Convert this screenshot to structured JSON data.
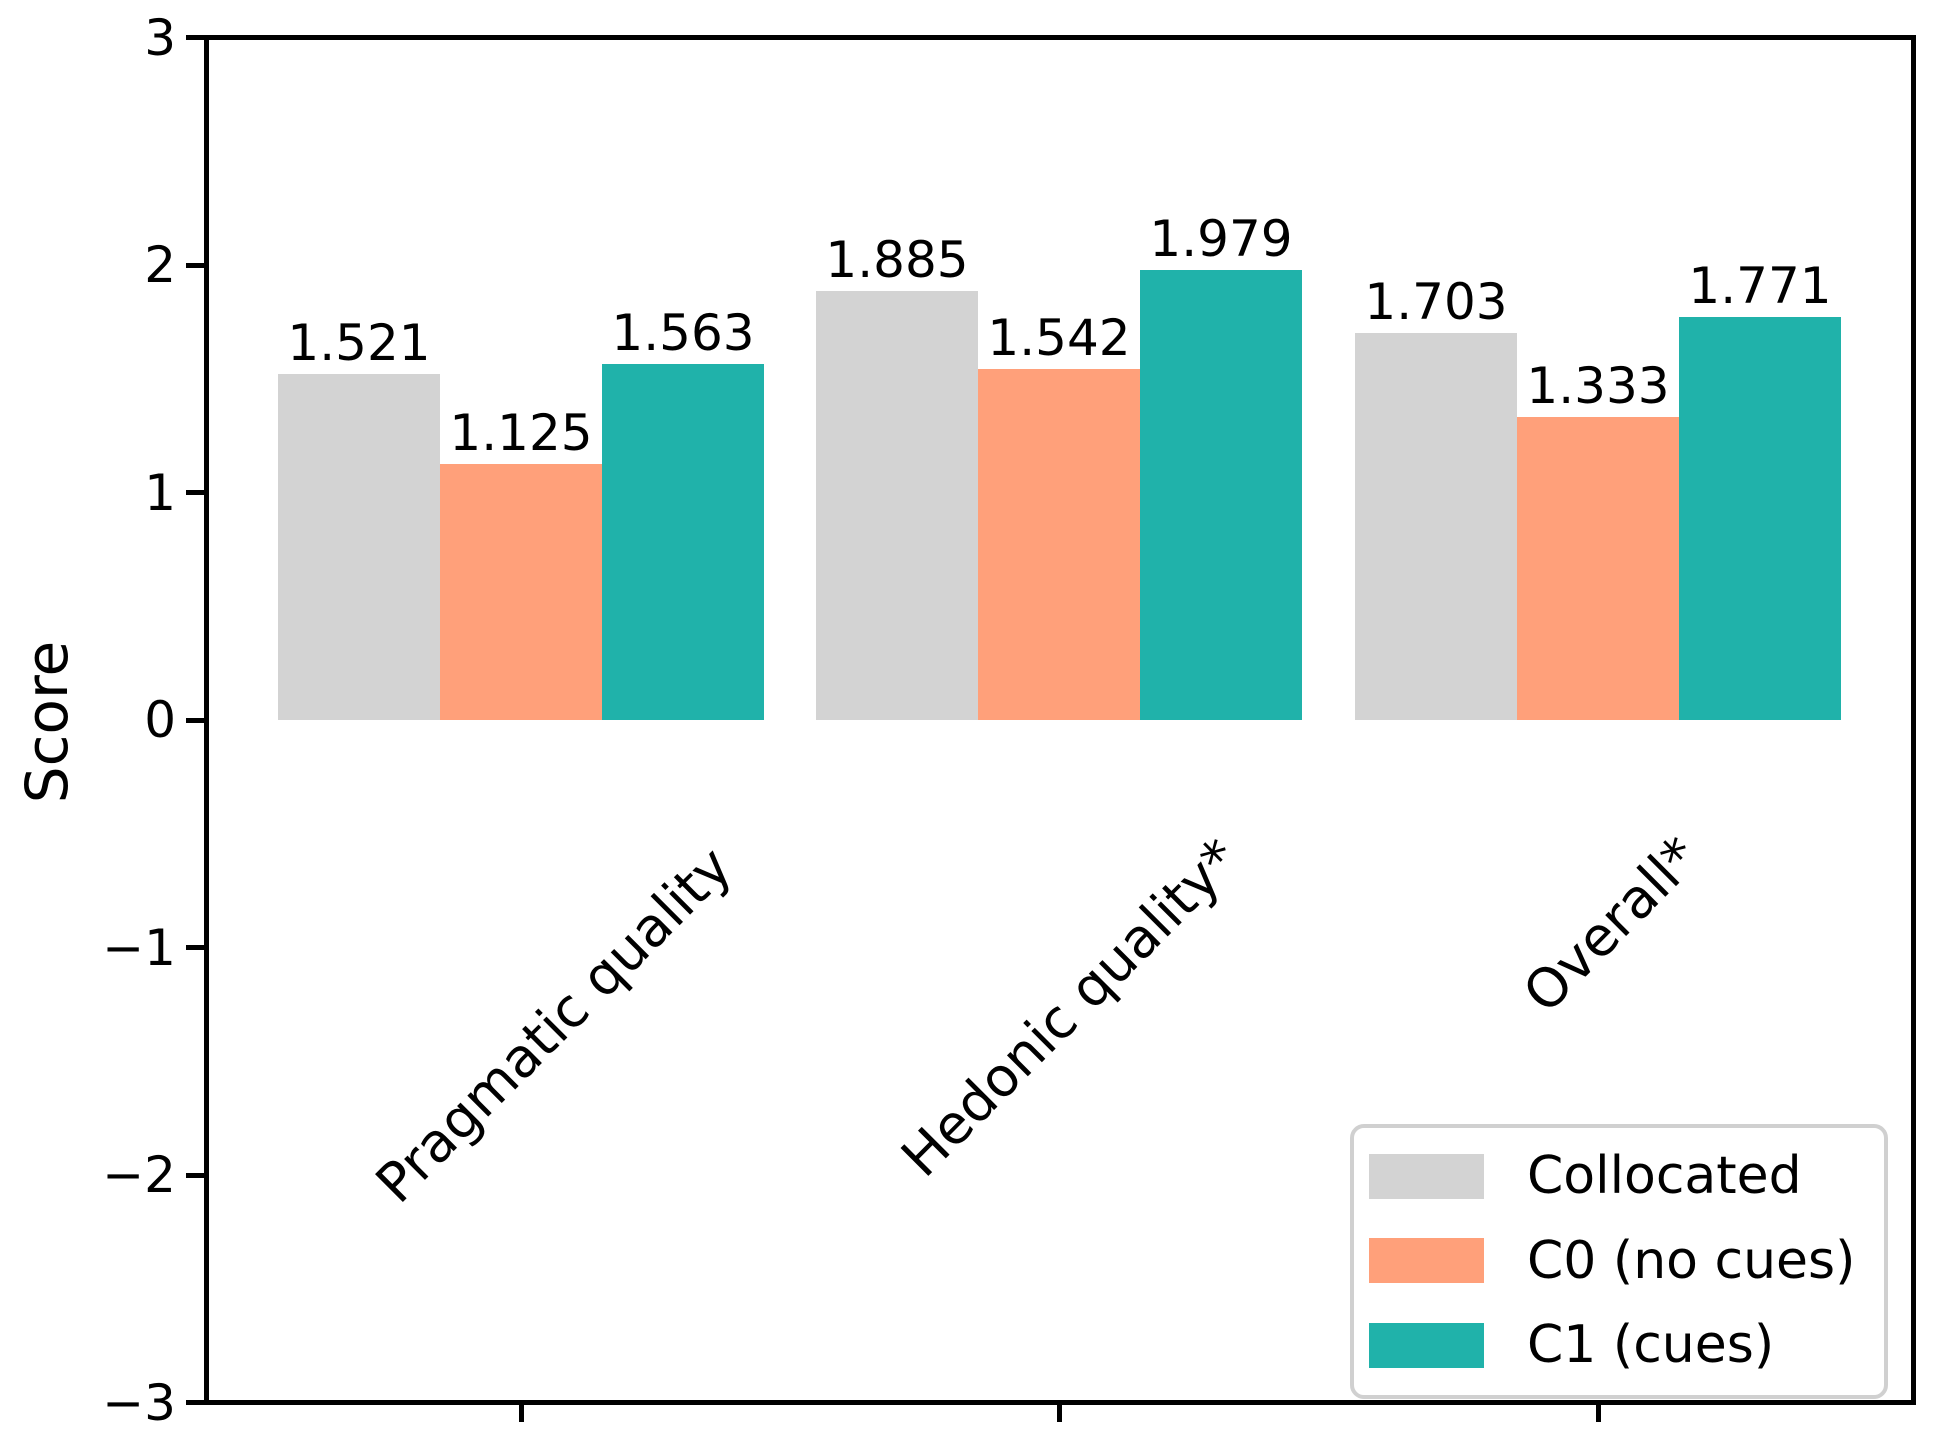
{
  "chart_data": {
    "type": "bar",
    "title": "",
    "ylabel": "Score",
    "xlabel": "",
    "ylim": [
      -3,
      3
    ],
    "grid": false,
    "background_color": "#ffffff",
    "axis_color": "#000000",
    "text_color": "#000000",
    "yticks": [
      {
        "value": 3,
        "label": "3"
      },
      {
        "value": 2,
        "label": "2"
      },
      {
        "value": 1,
        "label": "1"
      },
      {
        "value": 0,
        "label": "0"
      },
      {
        "value": -1,
        "label": "−1"
      },
      {
        "value": -2,
        "label": "−2"
      },
      {
        "value": -3,
        "label": "−3"
      }
    ],
    "categories": [
      "Pragmatic quality",
      "Hedonic quality*",
      "Overall*"
    ],
    "series": [
      {
        "name": "Collocated",
        "color": "#d3d3d3",
        "values": [
          1.521,
          1.885,
          1.703
        ],
        "value_labels": [
          "1.521",
          "1.885",
          "1.703"
        ]
      },
      {
        "name": "C0 (no cues)",
        "color": "#ffa07a",
        "values": [
          1.125,
          1.542,
          1.333
        ],
        "value_labels": [
          "1.125",
          "1.542",
          "1.333"
        ]
      },
      {
        "name": "C1 (cues)",
        "color": "#20b2aa",
        "values": [
          1.563,
          1.979,
          1.771
        ],
        "value_labels": [
          "1.563",
          "1.979",
          "1.771"
        ]
      }
    ],
    "legend_position": "lower right"
  },
  "legend": {
    "items": [
      {
        "label": "Collocated",
        "color": "#d3d3d3"
      },
      {
        "label": "C0 (no cues)",
        "color": "#ffa07a"
      },
      {
        "label": "C1 (cues)",
        "color": "#20b2aa"
      }
    ]
  }
}
